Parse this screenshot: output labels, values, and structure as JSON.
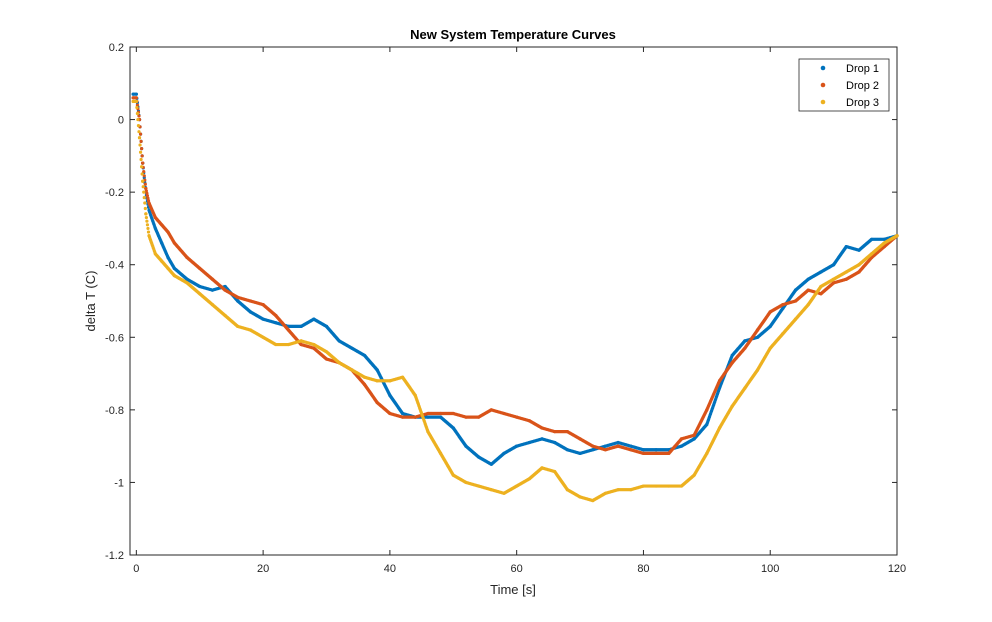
{
  "chart_data": {
    "type": "line",
    "title": "New System Temperature Curves",
    "xlabel": "Time [s]",
    "ylabel": "delta T (C)",
    "xlim": [
      -1,
      120
    ],
    "ylim": [
      -1.2,
      0.2
    ],
    "xticks": [
      0,
      20,
      40,
      60,
      80,
      100,
      120
    ],
    "yticks": [
      -1.2,
      -1,
      -0.8,
      -0.6,
      -0.4,
      -0.2,
      0,
      0.2
    ],
    "xtick_labels": [
      "0",
      "20",
      "40",
      "60",
      "80",
      "100",
      "120"
    ],
    "ytick_labels": [
      "-1.2",
      "-1",
      "-0.8",
      "-0.6",
      "-0.4",
      "-0.2",
      "0",
      "0.2"
    ],
    "grid": false,
    "legend_position": "top-right",
    "series": [
      {
        "name": "Drop 1",
        "color": "#0072BD",
        "marker": "dot",
        "points": [
          [
            -0.5,
            0.07
          ],
          [
            0,
            0.07
          ],
          [
            0.5,
            0.0
          ],
          [
            1,
            -0.12
          ],
          [
            1.5,
            -0.2
          ],
          [
            2,
            -0.25
          ],
          [
            3,
            -0.3
          ],
          [
            4,
            -0.34
          ],
          [
            5,
            -0.38
          ],
          [
            6,
            -0.41
          ],
          [
            8,
            -0.44
          ],
          [
            10,
            -0.46
          ],
          [
            12,
            -0.47
          ],
          [
            14,
            -0.46
          ],
          [
            16,
            -0.5
          ],
          [
            18,
            -0.53
          ],
          [
            20,
            -0.55
          ],
          [
            22,
            -0.56
          ],
          [
            24,
            -0.57
          ],
          [
            26,
            -0.57
          ],
          [
            28,
            -0.55
          ],
          [
            30,
            -0.57
          ],
          [
            32,
            -0.61
          ],
          [
            34,
            -0.63
          ],
          [
            36,
            -0.65
          ],
          [
            38,
            -0.69
          ],
          [
            40,
            -0.76
          ],
          [
            42,
            -0.81
          ],
          [
            44,
            -0.82
          ],
          [
            46,
            -0.82
          ],
          [
            48,
            -0.82
          ],
          [
            50,
            -0.85
          ],
          [
            52,
            -0.9
          ],
          [
            54,
            -0.93
          ],
          [
            56,
            -0.95
          ],
          [
            58,
            -0.92
          ],
          [
            60,
            -0.9
          ],
          [
            62,
            -0.89
          ],
          [
            64,
            -0.88
          ],
          [
            66,
            -0.89
          ],
          [
            68,
            -0.91
          ],
          [
            70,
            -0.92
          ],
          [
            72,
            -0.91
          ],
          [
            74,
            -0.9
          ],
          [
            76,
            -0.89
          ],
          [
            78,
            -0.9
          ],
          [
            80,
            -0.91
          ],
          [
            82,
            -0.91
          ],
          [
            84,
            -0.91
          ],
          [
            86,
            -0.9
          ],
          [
            88,
            -0.88
          ],
          [
            90,
            -0.84
          ],
          [
            92,
            -0.74
          ],
          [
            94,
            -0.65
          ],
          [
            96,
            -0.61
          ],
          [
            98,
            -0.6
          ],
          [
            100,
            -0.57
          ],
          [
            102,
            -0.52
          ],
          [
            104,
            -0.47
          ],
          [
            106,
            -0.44
          ],
          [
            108,
            -0.42
          ],
          [
            110,
            -0.4
          ],
          [
            112,
            -0.35
          ],
          [
            114,
            -0.36
          ],
          [
            116,
            -0.33
          ],
          [
            118,
            -0.33
          ],
          [
            120,
            -0.32
          ]
        ]
      },
      {
        "name": "Drop 2",
        "color": "#D95319",
        "marker": "dot",
        "points": [
          [
            -0.5,
            0.06
          ],
          [
            0,
            0.06
          ],
          [
            0.5,
            0.0
          ],
          [
            1,
            -0.12
          ],
          [
            1.5,
            -0.19
          ],
          [
            2,
            -0.23
          ],
          [
            3,
            -0.27
          ],
          [
            4,
            -0.29
          ],
          [
            5,
            -0.31
          ],
          [
            6,
            -0.34
          ],
          [
            8,
            -0.38
          ],
          [
            10,
            -0.41
          ],
          [
            12,
            -0.44
          ],
          [
            14,
            -0.47
          ],
          [
            16,
            -0.49
          ],
          [
            18,
            -0.5
          ],
          [
            20,
            -0.51
          ],
          [
            22,
            -0.54
          ],
          [
            24,
            -0.58
          ],
          [
            26,
            -0.62
          ],
          [
            28,
            -0.63
          ],
          [
            30,
            -0.66
          ],
          [
            32,
            -0.67
          ],
          [
            34,
            -0.69
          ],
          [
            36,
            -0.73
          ],
          [
            38,
            -0.78
          ],
          [
            40,
            -0.81
          ],
          [
            42,
            -0.82
          ],
          [
            44,
            -0.82
          ],
          [
            46,
            -0.81
          ],
          [
            48,
            -0.81
          ],
          [
            50,
            -0.81
          ],
          [
            52,
            -0.82
          ],
          [
            54,
            -0.82
          ],
          [
            56,
            -0.8
          ],
          [
            58,
            -0.81
          ],
          [
            60,
            -0.82
          ],
          [
            62,
            -0.83
          ],
          [
            64,
            -0.85
          ],
          [
            66,
            -0.86
          ],
          [
            68,
            -0.86
          ],
          [
            70,
            -0.88
          ],
          [
            72,
            -0.9
          ],
          [
            74,
            -0.91
          ],
          [
            76,
            -0.9
          ],
          [
            78,
            -0.91
          ],
          [
            80,
            -0.92
          ],
          [
            82,
            -0.92
          ],
          [
            84,
            -0.92
          ],
          [
            86,
            -0.88
          ],
          [
            88,
            -0.87
          ],
          [
            90,
            -0.8
          ],
          [
            92,
            -0.72
          ],
          [
            94,
            -0.67
          ],
          [
            96,
            -0.63
          ],
          [
            98,
            -0.58
          ],
          [
            100,
            -0.53
          ],
          [
            102,
            -0.51
          ],
          [
            104,
            -0.5
          ],
          [
            106,
            -0.47
          ],
          [
            108,
            -0.48
          ],
          [
            110,
            -0.45
          ],
          [
            112,
            -0.44
          ],
          [
            114,
            -0.42
          ],
          [
            116,
            -0.38
          ],
          [
            118,
            -0.35
          ],
          [
            120,
            -0.32
          ]
        ]
      },
      {
        "name": "Drop 3",
        "color": "#EDB120",
        "marker": "dot",
        "points": [
          [
            -0.5,
            0.05
          ],
          [
            0,
            0.05
          ],
          [
            0.5,
            -0.05
          ],
          [
            1,
            -0.17
          ],
          [
            1.5,
            -0.26
          ],
          [
            2,
            -0.32
          ],
          [
            3,
            -0.37
          ],
          [
            4,
            -0.39
          ],
          [
            5,
            -0.41
          ],
          [
            6,
            -0.43
          ],
          [
            8,
            -0.45
          ],
          [
            10,
            -0.48
          ],
          [
            12,
            -0.51
          ],
          [
            14,
            -0.54
          ],
          [
            16,
            -0.57
          ],
          [
            18,
            -0.58
          ],
          [
            20,
            -0.6
          ],
          [
            22,
            -0.62
          ],
          [
            24,
            -0.62
          ],
          [
            26,
            -0.61
          ],
          [
            28,
            -0.62
          ],
          [
            30,
            -0.64
          ],
          [
            32,
            -0.67
          ],
          [
            34,
            -0.69
          ],
          [
            36,
            -0.71
          ],
          [
            38,
            -0.72
          ],
          [
            40,
            -0.72
          ],
          [
            42,
            -0.71
          ],
          [
            44,
            -0.76
          ],
          [
            46,
            -0.86
          ],
          [
            48,
            -0.92
          ],
          [
            50,
            -0.98
          ],
          [
            52,
            -1.0
          ],
          [
            54,
            -1.01
          ],
          [
            56,
            -1.02
          ],
          [
            58,
            -1.03
          ],
          [
            60,
            -1.01
          ],
          [
            62,
            -0.99
          ],
          [
            64,
            -0.96
          ],
          [
            66,
            -0.97
          ],
          [
            68,
            -1.02
          ],
          [
            70,
            -1.04
          ],
          [
            72,
            -1.05
          ],
          [
            74,
            -1.03
          ],
          [
            76,
            -1.02
          ],
          [
            78,
            -1.02
          ],
          [
            80,
            -1.01
          ],
          [
            82,
            -1.01
          ],
          [
            84,
            -1.01
          ],
          [
            86,
            -1.01
          ],
          [
            88,
            -0.98
          ],
          [
            90,
            -0.92
          ],
          [
            92,
            -0.85
          ],
          [
            94,
            -0.79
          ],
          [
            96,
            -0.74
          ],
          [
            98,
            -0.69
          ],
          [
            100,
            -0.63
          ],
          [
            102,
            -0.59
          ],
          [
            104,
            -0.55
          ],
          [
            106,
            -0.51
          ],
          [
            108,
            -0.46
          ],
          [
            110,
            -0.44
          ],
          [
            112,
            -0.42
          ],
          [
            114,
            -0.4
          ],
          [
            116,
            -0.37
          ],
          [
            118,
            -0.34
          ],
          [
            120,
            -0.32
          ]
        ]
      }
    ]
  }
}
